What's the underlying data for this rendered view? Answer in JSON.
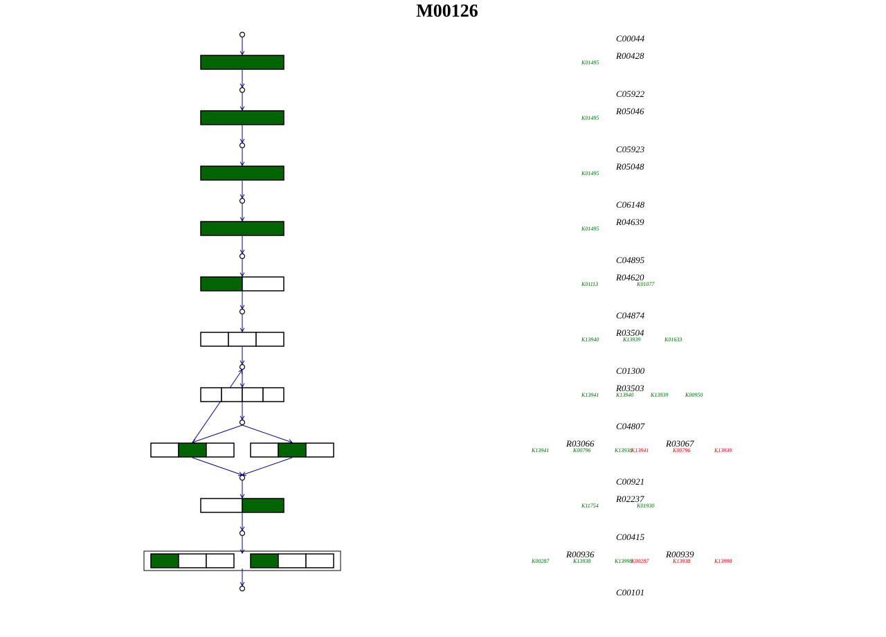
{
  "title": "M00126",
  "colors": {
    "filled": "#006400",
    "empty": "#ffffff",
    "edge": "#00008b",
    "outline": "#000000",
    "ko_present": "#006400",
    "ko_absent": "#e00000"
  },
  "compounds": [
    "C00044",
    "C05922",
    "C05923",
    "C06148",
    "C04895",
    "C04874",
    "C01300",
    "C04807",
    "C00921",
    "C00415",
    "C00101"
  ],
  "steps": [
    {
      "type": "single",
      "reactions": [
        "R00428"
      ],
      "boxes": [
        [
          1
        ]
      ],
      "kos": [
        [
          "K01495"
        ]
      ]
    },
    {
      "type": "single",
      "reactions": [
        "R05046"
      ],
      "boxes": [
        [
          1
        ]
      ],
      "kos": [
        [
          "K01495"
        ]
      ]
    },
    {
      "type": "single",
      "reactions": [
        "R05048"
      ],
      "boxes": [
        [
          1
        ]
      ],
      "kos": [
        [
          "K01495"
        ]
      ]
    },
    {
      "type": "single",
      "reactions": [
        "R04639"
      ],
      "boxes": [
        [
          1
        ]
      ],
      "kos": [
        [
          "K01495"
        ]
      ]
    },
    {
      "type": "single",
      "reactions": [
        "R04620"
      ],
      "boxes": [
        [
          1,
          0
        ]
      ],
      "kos": [
        [
          "K01113",
          "K01077"
        ]
      ]
    },
    {
      "type": "single",
      "reactions": [
        "R03504"
      ],
      "boxes": [
        [
          0,
          0,
          0
        ]
      ],
      "kos": [
        [
          "K13940",
          "K13939",
          "K01633"
        ]
      ]
    },
    {
      "type": "single",
      "reactions": [
        "R03503"
      ],
      "boxes": [
        [
          0,
          0,
          0,
          0
        ]
      ],
      "kos": [
        [
          "K13941",
          "K13940",
          "K13939",
          "K00950"
        ]
      ]
    },
    {
      "type": "branch",
      "reactions": [
        "R03066",
        "R03067"
      ],
      "boxes": [
        [
          0,
          1,
          0
        ],
        [
          0,
          1,
          0
        ]
      ],
      "kos": [
        [
          "K13941",
          "K00796",
          "K13938"
        ],
        [
          "K13941",
          "K00796",
          "K13939"
        ]
      ],
      "ko_colors": [
        [
          "g",
          "g",
          "g"
        ],
        [
          "r",
          "r",
          "r"
        ]
      ]
    },
    {
      "type": "single",
      "reactions": [
        "R02237"
      ],
      "boxes": [
        [
          0,
          1
        ]
      ],
      "kos": [
        [
          "K11754",
          "K01930"
        ]
      ]
    },
    {
      "type": "pair",
      "reactions": [
        "R00936",
        "R00939"
      ],
      "boxes": [
        [
          1,
          0,
          0
        ],
        [
          1,
          0,
          0
        ]
      ],
      "kos": [
        [
          "K00287",
          "K13938",
          "K13998"
        ],
        [
          "K00287",
          "K13938",
          "K13998"
        ]
      ],
      "ko_colors": [
        [
          "g",
          "g",
          "g"
        ],
        [
          "r",
          "r",
          "r"
        ]
      ]
    }
  ]
}
